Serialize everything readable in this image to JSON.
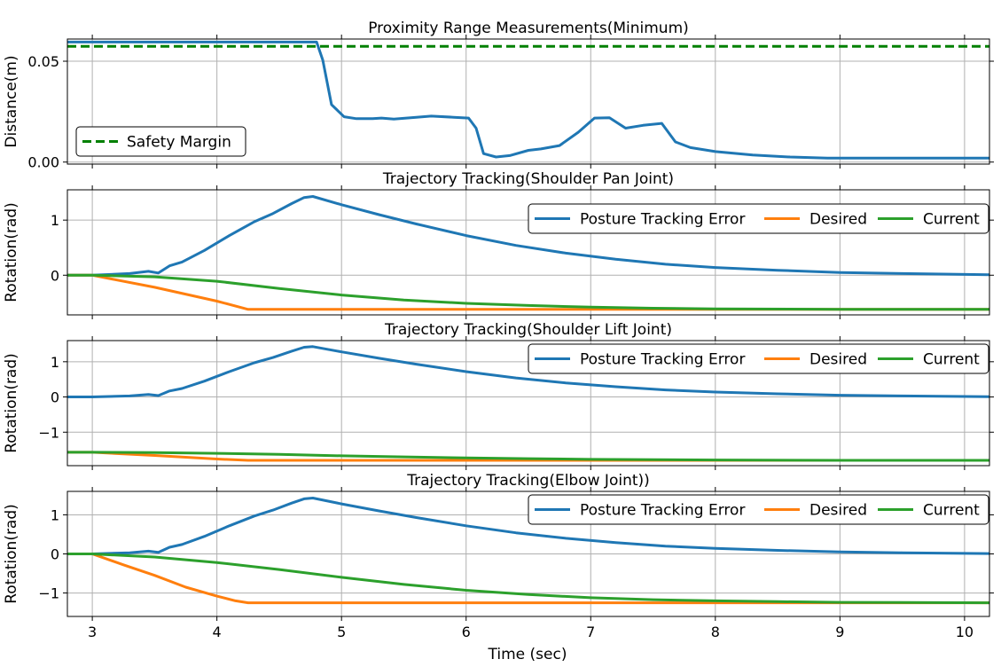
{
  "figure": {
    "xlabel": "Time (sec)"
  },
  "chart_data": [
    {
      "type": "line",
      "title": "Proximity Range Measurements(Minimum)",
      "xlabel": "",
      "ylabel": "Distance(m)",
      "xlim": [
        2.8,
        10.2
      ],
      "ylim": [
        -0.001,
        0.061
      ],
      "xticks": [
        3,
        4,
        5,
        6,
        7,
        8,
        9,
        10
      ],
      "yticks": [
        0.0,
        0.05
      ],
      "ytick_labels": [
        "0.00",
        "0.05"
      ],
      "grid": true,
      "legend": {
        "location": "lower-left",
        "show": [
          "Safety Margin"
        ]
      },
      "series": [
        {
          "name": "",
          "color": "#1f77b4",
          "dash": "solid",
          "x": [
            2.8,
            3.0,
            4.0,
            4.8,
            4.85,
            4.92,
            5.02,
            5.12,
            5.25,
            5.32,
            5.42,
            5.6,
            5.72,
            5.9,
            6.02,
            6.08,
            6.14,
            6.24,
            6.35,
            6.5,
            6.6,
            6.75,
            6.9,
            7.03,
            7.15,
            7.28,
            7.42,
            7.57,
            7.68,
            7.8,
            8.0,
            8.3,
            8.6,
            8.9,
            9.5,
            10.2
          ],
          "y": [
            0.0595,
            0.0595,
            0.0595,
            0.0595,
            0.0505,
            0.0285,
            0.0225,
            0.0215,
            0.0215,
            0.0218,
            0.0213,
            0.0222,
            0.0228,
            0.0222,
            0.0218,
            0.0168,
            0.0042,
            0.0025,
            0.0032,
            0.0058,
            0.0065,
            0.0082,
            0.0148,
            0.0218,
            0.022,
            0.0168,
            0.0182,
            0.0192,
            0.01,
            0.0072,
            0.0052,
            0.0035,
            0.0025,
            0.002,
            0.002,
            0.002
          ]
        },
        {
          "name": "Safety Margin",
          "color": "#008000",
          "dash": "dashed",
          "x": [
            2.8,
            10.2
          ],
          "y": [
            0.0574,
            0.0574
          ]
        }
      ]
    },
    {
      "type": "line",
      "title": "Trajectory Tracking(Shoulder Pan Joint)",
      "xlabel": "",
      "ylabel": "Rotation(rad)",
      "xlim": [
        2.8,
        10.2
      ],
      "ylim": [
        -0.72,
        1.55
      ],
      "xticks": [
        3,
        4,
        5,
        6,
        7,
        8,
        9,
        10
      ],
      "yticks": [
        0,
        1
      ],
      "ytick_labels": [
        "0",
        "1"
      ],
      "grid": true,
      "legend": {
        "location": "upper-right",
        "show": [
          "Posture Tracking Error",
          "Desired",
          "Current"
        ]
      },
      "series": [
        {
          "name": "Posture Tracking Error",
          "color": "#1f77b4",
          "dash": "solid",
          "x": [
            2.8,
            3.0,
            3.3,
            3.45,
            3.53,
            3.62,
            3.72,
            3.9,
            4.1,
            4.3,
            4.45,
            4.6,
            4.7,
            4.77,
            5.0,
            5.3,
            5.6,
            6.0,
            6.4,
            6.8,
            7.2,
            7.6,
            8.0,
            8.5,
            9.0,
            9.5,
            10.2
          ],
          "y": [
            0.0,
            0.0,
            0.03,
            0.07,
            0.04,
            0.17,
            0.24,
            0.45,
            0.72,
            0.97,
            1.12,
            1.3,
            1.41,
            1.43,
            1.28,
            1.1,
            0.93,
            0.72,
            0.54,
            0.4,
            0.29,
            0.2,
            0.14,
            0.09,
            0.05,
            0.03,
            0.01
          ]
        },
        {
          "name": "Desired",
          "color": "#ff7f0e",
          "dash": "solid",
          "x": [
            2.8,
            3.0,
            3.5,
            4.0,
            4.25,
            4.3,
            10.2
          ],
          "y": [
            0.0,
            0.0,
            -0.22,
            -0.47,
            -0.62,
            -0.62,
            -0.62
          ]
        },
        {
          "name": "Current",
          "color": "#2ca02c",
          "dash": "solid",
          "x": [
            2.8,
            3.0,
            3.5,
            4.0,
            4.5,
            5.0,
            5.5,
            6.0,
            6.5,
            7.0,
            7.5,
            8.0,
            9.0,
            10.2
          ],
          "y": [
            0.0,
            0.0,
            -0.03,
            -0.11,
            -0.24,
            -0.36,
            -0.45,
            -0.51,
            -0.55,
            -0.58,
            -0.6,
            -0.61,
            -0.62,
            -0.62
          ]
        }
      ]
    },
    {
      "type": "line",
      "title": "Trajectory Tracking(Shoulder Lift Joint)",
      "xlabel": "",
      "ylabel": "Rotation(rad)",
      "xlim": [
        2.8,
        10.2
      ],
      "ylim": [
        -1.95,
        1.6
      ],
      "xticks": [
        3,
        4,
        5,
        6,
        7,
        8,
        9,
        10
      ],
      "yticks": [
        -1,
        0,
        1
      ],
      "ytick_labels": [
        "−1",
        "0",
        "1"
      ],
      "grid": true,
      "legend": {
        "location": "upper-right",
        "show": [
          "Posture Tracking Error",
          "Desired",
          "Current"
        ]
      },
      "series": [
        {
          "name": "Posture Tracking Error",
          "color": "#1f77b4",
          "dash": "solid",
          "x": [
            2.8,
            3.0,
            3.3,
            3.45,
            3.53,
            3.62,
            3.72,
            3.9,
            4.1,
            4.3,
            4.45,
            4.6,
            4.7,
            4.77,
            5.0,
            5.3,
            5.6,
            6.0,
            6.4,
            6.8,
            7.2,
            7.6,
            8.0,
            8.5,
            9.0,
            9.5,
            10.2
          ],
          "y": [
            0.0,
            0.0,
            0.03,
            0.07,
            0.04,
            0.17,
            0.24,
            0.45,
            0.72,
            0.97,
            1.12,
            1.3,
            1.41,
            1.43,
            1.28,
            1.1,
            0.93,
            0.72,
            0.54,
            0.4,
            0.29,
            0.2,
            0.14,
            0.09,
            0.05,
            0.03,
            0.01
          ]
        },
        {
          "name": "Desired",
          "color": "#ff7f0e",
          "dash": "solid",
          "x": [
            2.8,
            3.0,
            3.5,
            4.0,
            4.25,
            4.3,
            10.2
          ],
          "y": [
            -1.57,
            -1.57,
            -1.66,
            -1.76,
            -1.8,
            -1.8,
            -1.8
          ]
        },
        {
          "name": "Current",
          "color": "#2ca02c",
          "dash": "solid",
          "x": [
            2.8,
            3.0,
            3.5,
            4.0,
            4.5,
            5.0,
            5.5,
            6.0,
            6.5,
            7.0,
            8.0,
            9.0,
            10.2
          ],
          "y": [
            -1.57,
            -1.57,
            -1.58,
            -1.6,
            -1.63,
            -1.67,
            -1.7,
            -1.73,
            -1.75,
            -1.77,
            -1.79,
            -1.8,
            -1.8
          ]
        }
      ]
    },
    {
      "type": "line",
      "title": "Trajectory Tracking(Elbow Joint))",
      "xlabel": "Time (sec)",
      "ylabel": "Rotation(rad)",
      "xlim": [
        2.8,
        10.2
      ],
      "ylim": [
        -1.6,
        1.6
      ],
      "xticks": [
        3,
        4,
        5,
        6,
        7,
        8,
        9,
        10
      ],
      "yticks": [
        -1,
        0,
        1
      ],
      "ytick_labels": [
        "−1",
        "0",
        "1"
      ],
      "grid": true,
      "legend": {
        "location": "upper-right",
        "show": [
          "Posture Tracking Error",
          "Desired",
          "Current"
        ]
      },
      "series": [
        {
          "name": "Posture Tracking Error",
          "color": "#1f77b4",
          "dash": "solid",
          "x": [
            2.8,
            3.0,
            3.3,
            3.45,
            3.53,
            3.62,
            3.72,
            3.9,
            4.1,
            4.3,
            4.45,
            4.6,
            4.7,
            4.77,
            5.0,
            5.3,
            5.6,
            6.0,
            6.4,
            6.8,
            7.2,
            7.6,
            8.0,
            8.5,
            9.0,
            9.5,
            10.2
          ],
          "y": [
            0.0,
            0.0,
            0.03,
            0.07,
            0.04,
            0.17,
            0.24,
            0.45,
            0.72,
            0.97,
            1.12,
            1.3,
            1.41,
            1.43,
            1.28,
            1.1,
            0.93,
            0.72,
            0.54,
            0.4,
            0.29,
            0.2,
            0.14,
            0.09,
            0.05,
            0.03,
            0.01
          ]
        },
        {
          "name": "Desired",
          "color": "#ff7f0e",
          "dash": "solid",
          "x": [
            2.8,
            3.0,
            3.25,
            3.5,
            3.75,
            4.0,
            4.15,
            4.25,
            4.3,
            10.2
          ],
          "y": [
            0.0,
            0.0,
            -0.28,
            -0.55,
            -0.85,
            -1.08,
            -1.2,
            -1.25,
            -1.25,
            -1.25
          ]
        },
        {
          "name": "Current",
          "color": "#2ca02c",
          "dash": "solid",
          "x": [
            2.8,
            3.0,
            3.5,
            4.0,
            4.5,
            5.0,
            5.5,
            6.0,
            6.5,
            7.0,
            7.5,
            8.0,
            8.5,
            9.0,
            10.2
          ],
          "y": [
            0.0,
            0.0,
            -0.08,
            -0.22,
            -0.4,
            -0.6,
            -0.78,
            -0.93,
            -1.04,
            -1.12,
            -1.17,
            -1.2,
            -1.22,
            -1.24,
            -1.25
          ]
        }
      ]
    }
  ]
}
